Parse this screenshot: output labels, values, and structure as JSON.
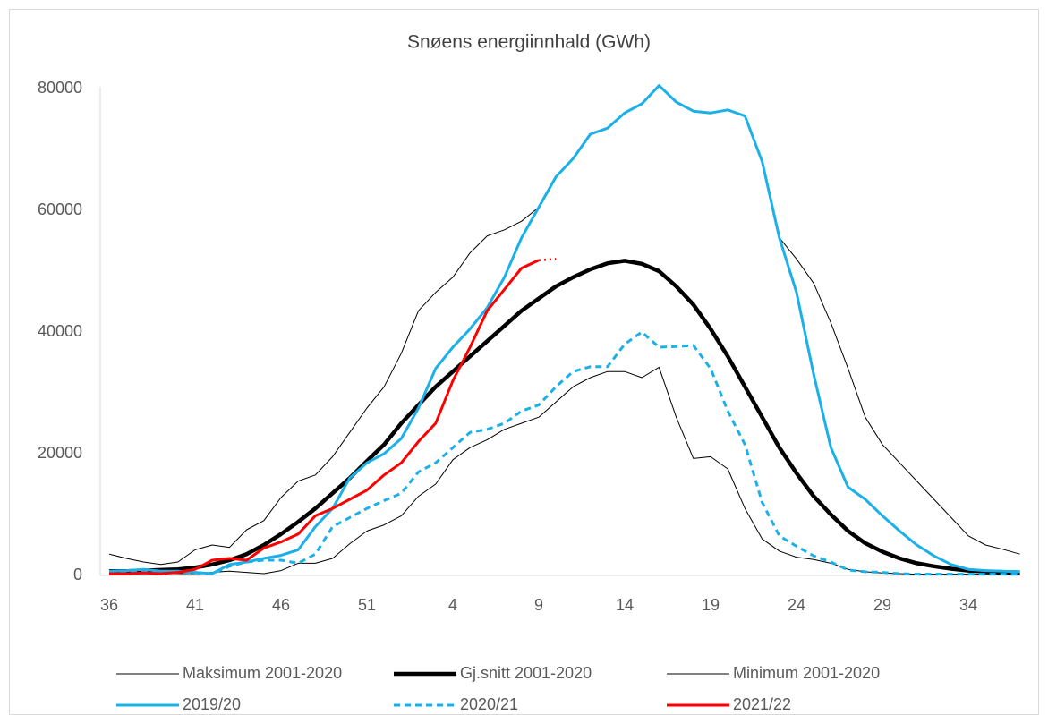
{
  "chart_data": {
    "type": "line",
    "title": "Snøens energiinnhald (GWh)",
    "categories": [
      "36",
      null,
      null,
      null,
      null,
      "41",
      null,
      null,
      null,
      null,
      "46",
      null,
      null,
      null,
      null,
      "51",
      null,
      null,
      null,
      null,
      "4",
      null,
      null,
      null,
      null,
      "9",
      null,
      null,
      null,
      null,
      "14",
      null,
      null,
      null,
      null,
      "19",
      null,
      null,
      null,
      null,
      "24",
      null,
      null,
      null,
      null,
      "29",
      null,
      null,
      null,
      null,
      "34",
      null,
      null,
      null
    ],
    "ylim": [
      0,
      80000
    ],
    "yticks": [
      0,
      20000,
      40000,
      60000,
      80000
    ],
    "grid": false,
    "legend": "bottom",
    "series": [
      {
        "name": "Maksimum 2001-2020",
        "color": "#000000",
        "style": "thin",
        "values": [
          3500,
          2800,
          2200,
          1800,
          2200,
          4200,
          5000,
          4600,
          7500,
          9000,
          12800,
          15500,
          16500,
          19500,
          23500,
          27500,
          31000,
          36500,
          43500,
          46500,
          49000,
          53000,
          55800,
          56800,
          58200,
          60500,
          65500,
          68500,
          72500,
          73500,
          76000,
          77500,
          80500,
          77800,
          76300,
          76000,
          76500,
          75500,
          68000,
          55500,
          52000,
          48000,
          41500,
          34000,
          26000,
          21500,
          18500,
          15500,
          12500,
          9500,
          6500,
          5000,
          4300,
          3500
        ]
      },
      {
        "name": "Gj.snitt 2001-2020",
        "color": "#000000",
        "style": "thick",
        "values": [
          700,
          700,
          800,
          900,
          1000,
          1300,
          1800,
          2500,
          3500,
          5000,
          6800,
          8800,
          11000,
          13500,
          16000,
          18800,
          21500,
          25000,
          28000,
          31000,
          33500,
          36000,
          38500,
          41000,
          43500,
          45500,
          47500,
          49000,
          50300,
          51300,
          51700,
          51200,
          50000,
          47500,
          44500,
          40500,
          36000,
          31000,
          26000,
          21000,
          16800,
          13000,
          10000,
          7300,
          5300,
          3900,
          2800,
          2000,
          1500,
          1100,
          800,
          650,
          550,
          500
        ]
      },
      {
        "name": "Minimum 2001-2020",
        "color": "#000000",
        "style": "thin",
        "values": [
          300,
          300,
          300,
          300,
          300,
          300,
          500,
          700,
          500,
          300,
          800,
          2000,
          2000,
          2800,
          5200,
          7300,
          8300,
          9800,
          13000,
          15000,
          19000,
          21000,
          22300,
          24000,
          25000,
          26000,
          28500,
          31000,
          32500,
          33500,
          33500,
          32500,
          34200,
          26000,
          19200,
          19500,
          17500,
          11000,
          6000,
          4000,
          3000,
          2600,
          2000,
          1000,
          600,
          400,
          300,
          200,
          200,
          200,
          200,
          200,
          200,
          200
        ]
      },
      {
        "name": "2019/20",
        "color": "#1cb0e8",
        "style": "solid",
        "values": [
          700,
          800,
          1000,
          700,
          700,
          500,
          300,
          1800,
          2200,
          2800,
          3300,
          4200,
          8000,
          11000,
          16000,
          18500,
          20000,
          22500,
          27500,
          34000,
          37500,
          40500,
          44000,
          49000,
          55500,
          60500,
          65500,
          68500,
          72500,
          73500,
          76000,
          77500,
          80500,
          77800,
          76300,
          76000,
          76500,
          75500,
          68000,
          55500,
          46500,
          33000,
          21000,
          14500,
          12500,
          9800,
          7300,
          5000,
          3200,
          1800,
          1000,
          800,
          700,
          600
        ]
      },
      {
        "name": "2020/21",
        "color": "#1cb0e8",
        "style": "dashed",
        "values": [
          500,
          500,
          600,
          500,
          600,
          400,
          300,
          1500,
          2200,
          2500,
          2500,
          2000,
          3500,
          8000,
          9500,
          11000,
          12300,
          13500,
          17000,
          18500,
          21000,
          23500,
          24000,
          25000,
          27000,
          28000,
          31000,
          33500,
          34300,
          34300,
          38000,
          40000,
          37500,
          37600,
          37800,
          34000,
          27000,
          21500,
          12000,
          6500,
          4800,
          3200,
          2200,
          900,
          600,
          500,
          300,
          200,
          200,
          200,
          200,
          200,
          200,
          200
        ]
      },
      {
        "name": "2021/22",
        "color": "#ff0000",
        "style": "solid",
        "values": [
          300,
          300,
          400,
          300,
          500,
          1000,
          2500,
          2800,
          2500,
          4500,
          5500,
          6800,
          9800,
          11000,
          12500,
          14000,
          16500,
          18500,
          22000,
          25000,
          32000,
          37500,
          43500,
          47000,
          50500,
          51800,
          null,
          null,
          null,
          null,
          null,
          null,
          null,
          null,
          null,
          null,
          null,
          null,
          null,
          null,
          null,
          null,
          null,
          null,
          null,
          null,
          null,
          null,
          null,
          null,
          null,
          null,
          null,
          null
        ]
      },
      {
        "color": "#ff0000",
        "style": "dotted",
        "values": [
          null,
          null,
          null,
          null,
          null,
          null,
          null,
          null,
          null,
          null,
          null,
          null,
          null,
          null,
          null,
          null,
          null,
          null,
          null,
          null,
          null,
          null,
          null,
          null,
          null,
          51800,
          52000,
          null,
          null,
          null,
          null,
          null,
          null,
          null,
          null,
          null,
          null,
          null,
          null,
          null,
          null,
          null,
          null,
          null,
          null,
          null,
          null,
          null,
          null,
          null,
          null,
          null,
          null,
          null
        ]
      }
    ]
  }
}
